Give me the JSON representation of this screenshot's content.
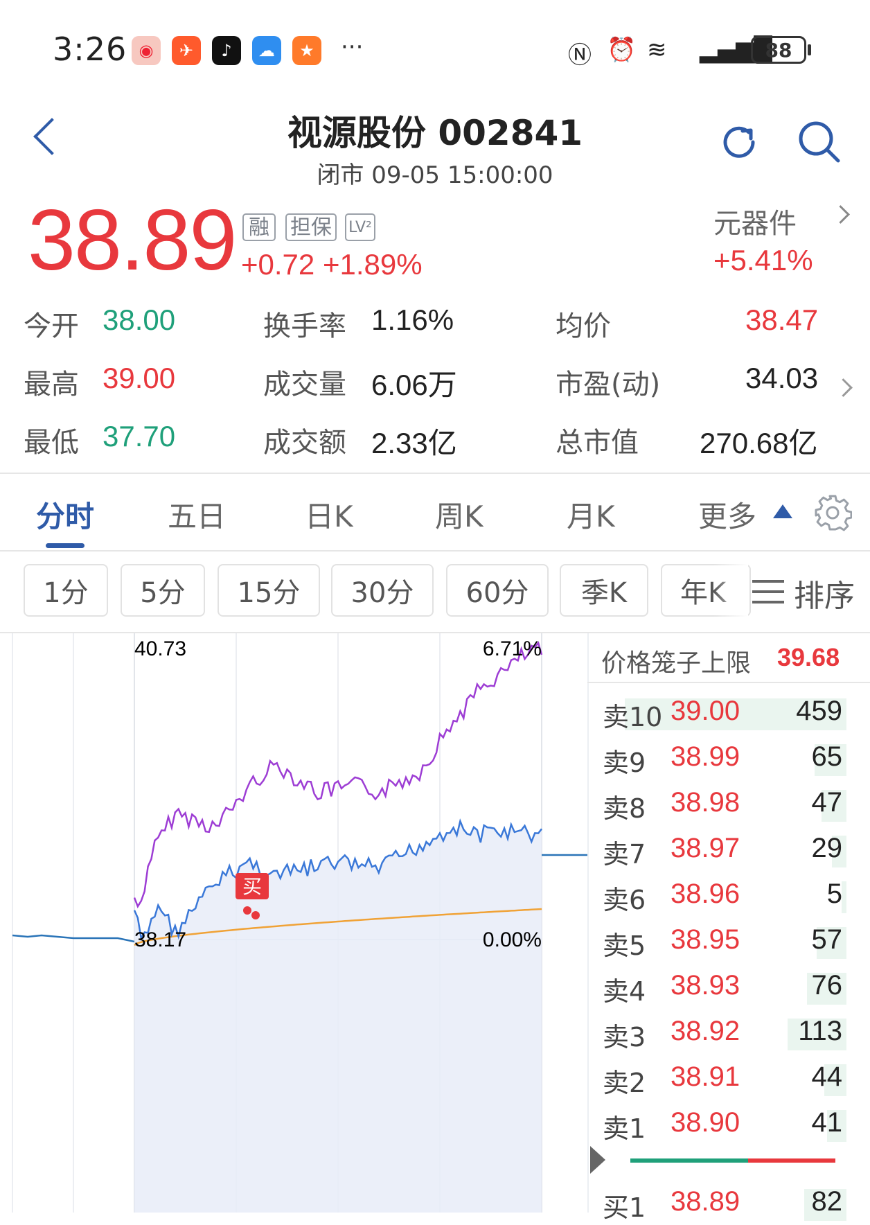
{
  "status_bar": {
    "time": "3:26",
    "battery": "88",
    "icons": [
      "weibo-icon",
      "feishu-icon",
      "tiktok-icon",
      "weather-icon",
      "app-icon",
      "nfc-icon",
      "alarm-icon",
      "wifi-icon",
      "signal-icon"
    ]
  },
  "header": {
    "title": "视源股份 002841",
    "subtitle": "闭市 09-05 15:00:00"
  },
  "quote": {
    "price": "38.89",
    "change": "+0.72 +1.89%",
    "tags": [
      "融",
      "担保",
      "LV²"
    ],
    "sector_name": "元器件",
    "sector_change": "+5.41%",
    "price_color": "#e8383d",
    "down_color": "#1fa07a"
  },
  "stats": [
    {
      "label": "今开",
      "value": "38.00",
      "color": "green"
    },
    {
      "label": "换手率",
      "value": "1.16%",
      "color": "dark"
    },
    {
      "label": "均价",
      "value": "38.47",
      "color": "red"
    },
    {
      "label": "最高",
      "value": "39.00",
      "color": "red"
    },
    {
      "label": "成交量",
      "value": "6.06万",
      "color": "dark"
    },
    {
      "label": "市盈(动)",
      "value": "34.03",
      "color": "dark"
    },
    {
      "label": "最低",
      "value": "37.70",
      "color": "green"
    },
    {
      "label": "成交额",
      "value": "2.33亿",
      "color": "dark"
    },
    {
      "label": "总市值",
      "value": "270.68亿",
      "color": "dark"
    }
  ],
  "tabs": [
    "分时",
    "五日",
    "日K",
    "周K",
    "月K",
    "更多"
  ],
  "active_tab": "分时",
  "periods": [
    "1分",
    "5分",
    "15分",
    "30分",
    "60分",
    "季K",
    "年K"
  ],
  "sort_label": "排序",
  "chart": {
    "price_top": "40.73",
    "pct_top": "6.71%",
    "price_mid": "38.17",
    "pct_mid": "0.00%",
    "marker": "买"
  },
  "chart_data": {
    "type": "line",
    "series": [],
    "y_axis_left_top": 40.73,
    "y_axis_left_mid": 38.17,
    "y_axis_right_top_pct": 6.71,
    "y_axis_right_mid_pct": 0.0,
    "colors": {
      "price": "#3a78d8",
      "avg": "#f0a236",
      "sector": "#9d3dd4"
    }
  },
  "order_book": {
    "cage_label": "价格笼子上限",
    "cage_value": "39.68",
    "asks": [
      {
        "label": "卖10",
        "price": "39.00",
        "vol": "459",
        "fill": 0.9
      },
      {
        "label": "卖9",
        "price": "38.99",
        "vol": "65",
        "fill": 0.13
      },
      {
        "label": "卖8",
        "price": "38.98",
        "vol": "47",
        "fill": 0.1
      },
      {
        "label": "卖7",
        "price": "38.97",
        "vol": "29",
        "fill": 0.06
      },
      {
        "label": "卖6",
        "price": "38.96",
        "vol": "5",
        "fill": 0.02
      },
      {
        "label": "卖5",
        "price": "38.95",
        "vol": "57",
        "fill": 0.12
      },
      {
        "label": "卖4",
        "price": "38.93",
        "vol": "76",
        "fill": 0.16
      },
      {
        "label": "卖3",
        "price": "38.92",
        "vol": "113",
        "fill": 0.24
      },
      {
        "label": "卖2",
        "price": "38.91",
        "vol": "44",
        "fill": 0.09
      },
      {
        "label": "卖1",
        "price": "38.90",
        "vol": "41",
        "fill": 0.08
      }
    ],
    "bids": [
      {
        "label": "买1",
        "price": "38.89",
        "vol": "82",
        "fill": 0.17
      }
    ]
  }
}
